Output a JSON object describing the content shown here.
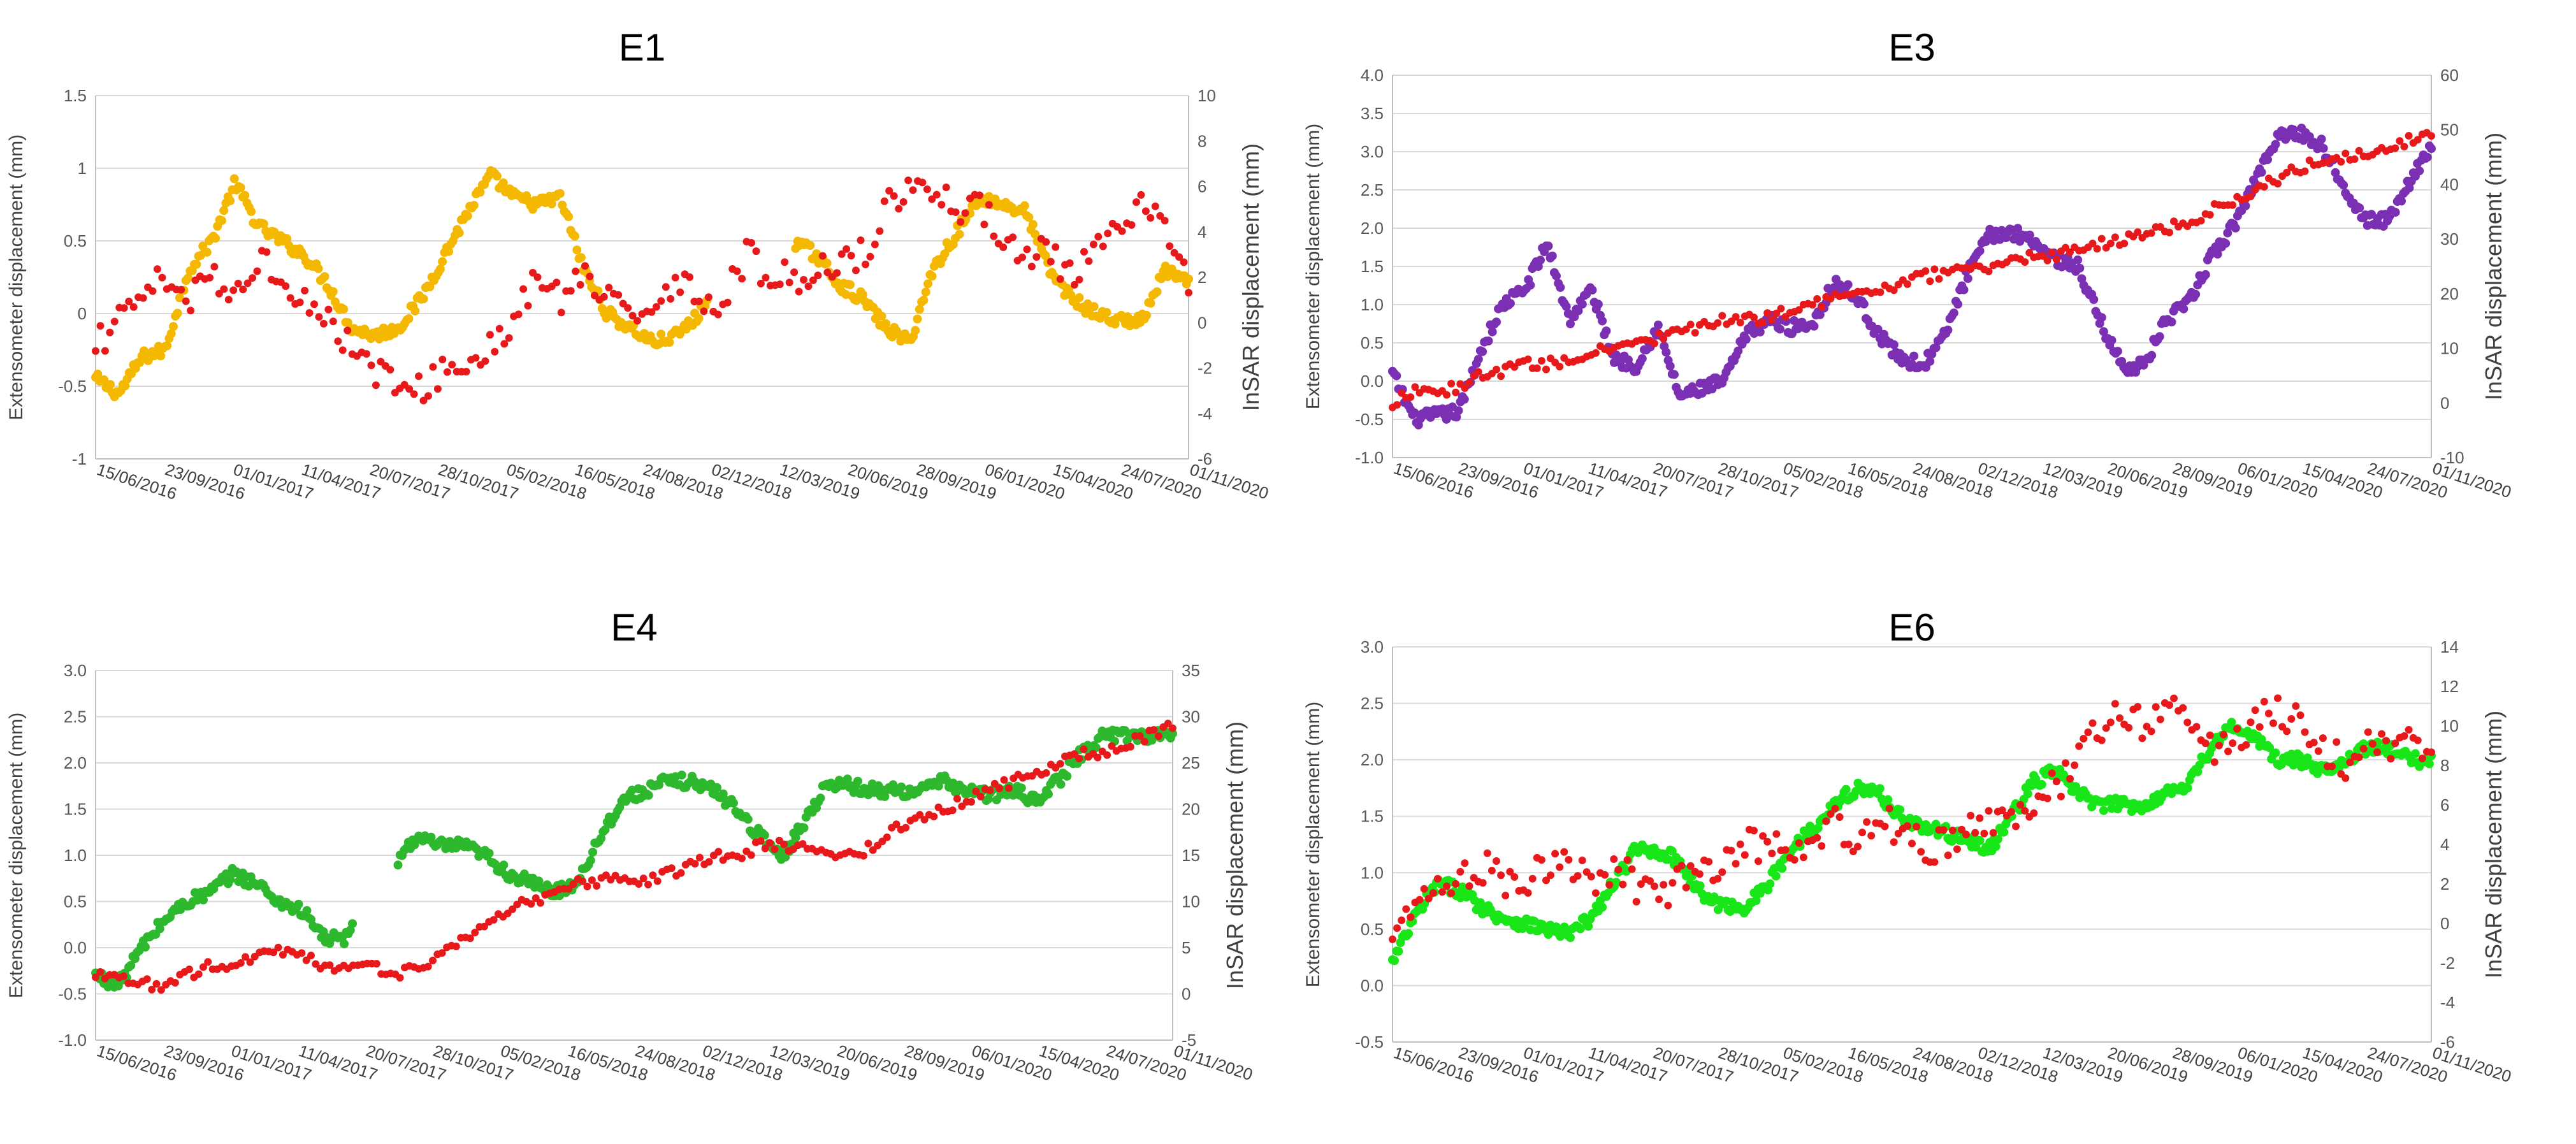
{
  "chart_data": [
    {
      "id": "E1",
      "type": "scatter",
      "title": "E1",
      "ylabel": "Extensometer displacement (mm)",
      "y2label": "InSAR displacement (mm)",
      "ylim": [
        -1,
        1.5
      ],
      "yticks": [
        -1,
        -0.5,
        0,
        0.5,
        1,
        1.5
      ],
      "ytick_labels": [
        "-1",
        "-0.5",
        "0",
        "0.5",
        "1",
        "1.5"
      ],
      "y2lim": [
        -6,
        10
      ],
      "y2ticks": [
        -6,
        -4,
        -2,
        0,
        2,
        4,
        6,
        8,
        10
      ],
      "y2tick_labels": [
        "-6",
        "-4",
        "-2",
        "0",
        "2",
        "4",
        "6",
        "8",
        "10"
      ],
      "date_ticks": [
        "15/06/2016",
        "23/09/2016",
        "01/01/2017",
        "11/04/2017",
        "20/07/2017",
        "28/10/2017",
        "05/02/2018",
        "16/05/2018",
        "24/08/2018",
        "02/12/2018",
        "12/03/2019",
        "20/06/2019",
        "28/09/2019",
        "06/01/2020",
        "15/04/2020",
        "24/07/2020",
        "01/11/2020"
      ],
      "grid": true,
      "series": [
        {
          "name": "Extensometer",
          "axis": "left",
          "color": "#f5b800",
          "gaps": [
            [
              0.56,
              0.64
            ]
          ],
          "values": [
            -0.45,
            -0.55,
            -0.3,
            -0.25,
            0.3,
            0.5,
            0.9,
            0.6,
            0.5,
            0.4,
            0.2,
            -0.1,
            -0.15,
            -0.1,
            0.1,
            0.4,
            0.7,
            0.95,
            0.8,
            0.75,
            0.8,
            0.3,
            0.0,
            -0.1,
            -0.2,
            -0.15,
            0.0,
            0.4,
            0.7,
            0.65,
            0.5,
            0.4,
            0.2,
            0.1,
            -0.1,
            -0.2,
            0.3,
            0.55,
            0.8,
            0.75,
            0.7,
            0.3,
            0.1,
            0.0,
            -0.05,
            -0.05,
            0.3,
            0.2
          ]
        },
        {
          "name": "InSAR",
          "axis": "right",
          "color": "#e8191b",
          "values": [
            -1,
            0,
            1,
            2,
            1,
            2,
            1,
            3,
            2,
            1,
            0,
            -1,
            -2,
            -3,
            -3,
            -2,
            -2,
            -1,
            0,
            2,
            1,
            2,
            1,
            0,
            1,
            2,
            1,
            1,
            3,
            2,
            2,
            2,
            3,
            3,
            5,
            6,
            6,
            5,
            5,
            4,
            3,
            3,
            2,
            3,
            4,
            5,
            4,
            2
          ]
        }
      ]
    },
    {
      "id": "E3",
      "type": "scatter",
      "title": "E3",
      "ylabel": "Extensometer displacement (mm)",
      "y2label": "InSAR displacement (mm)",
      "ylim": [
        -1,
        4
      ],
      "yticks": [
        -1,
        -0.5,
        0,
        0.5,
        1,
        1.5,
        2,
        2.5,
        3,
        3.5,
        4
      ],
      "ytick_labels": [
        "-1.0",
        "-0.5",
        "0.0",
        "0.5",
        "1.0",
        "1.5",
        "2.0",
        "2.5",
        "3.0",
        "3.5",
        "4.0"
      ],
      "y2lim": [
        -10,
        60
      ],
      "y2ticks": [
        -10,
        0,
        10,
        20,
        30,
        40,
        50,
        60
      ],
      "y2tick_labels": [
        "-10",
        "0",
        "10",
        "20",
        "30",
        "40",
        "50",
        "60"
      ],
      "date_ticks": [
        "15/06/2016",
        "23/09/2016",
        "01/01/2017",
        "11/04/2017",
        "20/07/2017",
        "28/10/2017",
        "05/02/2018",
        "16/05/2018",
        "24/08/2018",
        "02/12/2018",
        "12/03/2019",
        "20/06/2019",
        "28/09/2019",
        "06/01/2020",
        "15/04/2020",
        "24/07/2020",
        "01/11/2020"
      ],
      "grid": true,
      "series": [
        {
          "name": "Extensometer",
          "axis": "left",
          "color": "#7b30b4",
          "values": [
            0.1,
            -0.5,
            -0.45,
            -0.4,
            0.4,
            1.0,
            1.2,
            1.8,
            0.8,
            1.2,
            0.3,
            0.2,
            0.7,
            -0.2,
            -0.1,
            0.0,
            0.6,
            0.8,
            0.7,
            0.75,
            1.3,
            1.1,
            0.6,
            0.3,
            0.2,
            0.6,
            1.4,
            1.9,
            1.95,
            1.85,
            1.6,
            1.5,
            0.8,
            0.2,
            0.2,
            0.8,
            1.0,
            1.6,
            2.0,
            2.6,
            3.2,
            3.25,
            3.1,
            2.6,
            2.1,
            2.1,
            2.6,
            3.1
          ]
        },
        {
          "name": "InSAR",
          "axis": "right",
          "color": "#e8191b",
          "values": [
            0,
            2,
            2,
            3,
            5,
            6,
            7,
            7,
            8,
            9,
            10,
            11,
            12,
            13,
            14,
            15,
            15,
            16,
            17,
            18,
            19,
            20,
            21,
            22,
            23,
            24,
            24,
            25,
            26,
            27,
            27,
            28,
            29,
            30,
            31,
            32,
            33,
            35,
            37,
            39,
            41,
            43,
            44,
            45,
            46,
            47,
            48,
            49
          ]
        }
      ]
    },
    {
      "id": "E4",
      "type": "scatter",
      "title": "E4",
      "ylabel": "Extensometer displacement (mm)",
      "y2label": "InSAR displacement (mm)",
      "ylim": [
        -1,
        3
      ],
      "yticks": [
        -1,
        -0.5,
        0,
        0.5,
        1,
        1.5,
        2,
        2.5,
        3
      ],
      "ytick_labels": [
        "-1.0",
        "-0.5",
        "0.0",
        "0.5",
        "1.0",
        "1.5",
        "2.0",
        "2.5",
        "3.0"
      ],
      "y2lim": [
        -5,
        35
      ],
      "y2ticks": [
        -5,
        0,
        5,
        10,
        15,
        20,
        25,
        30,
        35
      ],
      "y2tick_labels": [
        "-5",
        "0",
        "5",
        "10",
        "15",
        "20",
        "25",
        "30",
        "35"
      ],
      "date_ticks": [
        "15/06/2016",
        "23/09/2016",
        "01/01/2017",
        "11/04/2017",
        "20/07/2017",
        "28/10/2017",
        "05/02/2018",
        "16/05/2018",
        "24/08/2018",
        "02/12/2018",
        "12/03/2019",
        "20/06/2019",
        "28/09/2019",
        "06/01/2020",
        "15/04/2020",
        "24/07/2020",
        "01/11/2020"
      ],
      "grid": true,
      "series": [
        {
          "name": "Extensometer",
          "axis": "left",
          "color": "#2db82d",
          "gaps": [
            [
              0.24,
              0.28
            ]
          ],
          "values": [
            -0.3,
            -0.4,
            0.0,
            0.3,
            0.5,
            0.6,
            0.8,
            0.7,
            0.5,
            0.4,
            0.1,
            0.1,
            0.6,
            0.9,
            1.2,
            1.1,
            1.1,
            1.0,
            0.8,
            0.7,
            0.6,
            0.7,
            1.2,
            1.6,
            1.7,
            1.8,
            1.8,
            1.7,
            1.5,
            1.2,
            1.0,
            1.4,
            1.8,
            1.75,
            1.7,
            1.7,
            1.7,
            1.8,
            1.7,
            1.65,
            1.7,
            1.6,
            1.8,
            2.1,
            2.3,
            2.3,
            2.3,
            2.3
          ]
        },
        {
          "name": "InSAR",
          "axis": "right",
          "color": "#e8191b",
          "values": [
            2,
            2,
            1,
            1,
            2,
            3,
            3,
            4,
            5,
            4,
            3,
            3,
            3,
            2,
            3,
            4,
            6,
            7,
            9,
            10,
            11,
            12,
            12,
            13,
            12,
            13,
            14,
            15,
            15,
            16,
            16,
            16,
            15,
            15,
            16,
            18,
            19,
            20,
            21,
            22,
            23,
            24,
            25,
            26,
            26,
            27,
            28,
            29
          ]
        }
      ]
    },
    {
      "id": "E6",
      "type": "scatter",
      "title": "E6",
      "ylabel": "Extensometer displacement (mm)",
      "y2label": "InSAR displacement (mm)",
      "ylim": [
        -0.5,
        3
      ],
      "yticks": [
        -0.5,
        0,
        0.5,
        1,
        1.5,
        2,
        2.5,
        3
      ],
      "ytick_labels": [
        "-0.5",
        "0.0",
        "0.5",
        "1.0",
        "1.5",
        "2.0",
        "2.5",
        "3.0"
      ],
      "y2lim": [
        -6,
        14
      ],
      "y2ticks": [
        -6,
        -4,
        -2,
        0,
        2,
        4,
        6,
        8,
        10,
        12,
        14
      ],
      "y2tick_labels": [
        "-6",
        "-4",
        "-2",
        "0",
        "2",
        "4",
        "6",
        "8",
        "10",
        "12",
        "14"
      ],
      "date_ticks": [
        "15/06/2016",
        "23/09/2016",
        "01/01/2017",
        "11/04/2017",
        "20/07/2017",
        "28/10/2017",
        "05/02/2018",
        "16/05/2018",
        "24/08/2018",
        "02/12/2018",
        "12/03/2019",
        "20/06/2019",
        "28/09/2019",
        "06/01/2020",
        "15/04/2020",
        "24/07/2020",
        "01/11/2020"
      ],
      "grid": true,
      "series": [
        {
          "name": "Extensometer",
          "axis": "left",
          "color": "#19e619",
          "values": [
            0.2,
            0.6,
            0.9,
            0.85,
            0.7,
            0.6,
            0.55,
            0.5,
            0.45,
            0.6,
            0.9,
            1.2,
            1.2,
            1.1,
            0.8,
            0.7,
            0.7,
            0.9,
            1.2,
            1.4,
            1.6,
            1.75,
            1.7,
            1.5,
            1.4,
            1.35,
            1.3,
            1.2,
            1.5,
            1.8,
            1.9,
            1.7,
            1.6,
            1.6,
            1.6,
            1.7,
            1.8,
            2.1,
            2.3,
            2.2,
            2.0,
            2.0,
            1.9,
            2.0,
            2.1,
            2.1,
            2.0,
            2.0
          ]
        },
        {
          "name": "InSAR",
          "axis": "right",
          "color": "#e8191b",
          "values": [
            0,
            1,
            2,
            2,
            3,
            2,
            2,
            3,
            3,
            2,
            3,
            2,
            1,
            2,
            3,
            3,
            4,
            4,
            3,
            4,
            5,
            4,
            5,
            5,
            4,
            4,
            5,
            5,
            5,
            6,
            7,
            8,
            10,
            11,
            10,
            11,
            10,
            9,
            9,
            10,
            11,
            10,
            9,
            8,
            9,
            9,
            9,
            9
          ]
        }
      ]
    }
  ]
}
